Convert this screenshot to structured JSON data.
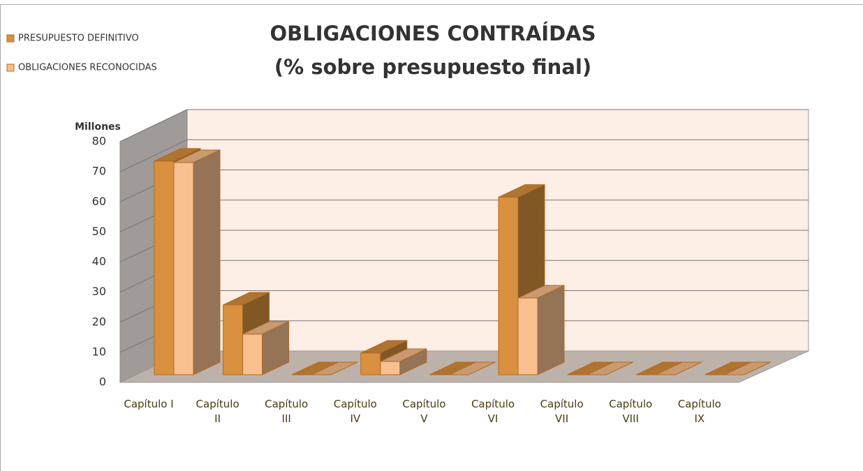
{
  "chart_data": {
    "type": "bar3d",
    "title": "OBLIGACIONES CONTRAÍDAS",
    "subtitle": "(% sobre presupuesto final)",
    "y_label": "Millones",
    "categories": [
      "Capítulo I",
      "Capítulo\nII",
      "Capítulo\nIII",
      "Capítulo\nIV",
      "Capítulo\nV",
      "Capítulo\nVI",
      "Capítulo\nVII",
      "Capítulo\nVIII",
      "Capítulo\nIX"
    ],
    "series": [
      {
        "name": "PRESUPUESTO DEFINITIVO",
        "color": "#d9913f",
        "values": [
          71,
          23.2,
          0,
          7.2,
          0,
          59,
          0,
          0,
          0
        ]
      },
      {
        "name": "OBLIGACIONES RECONOCIDAS",
        "color": "#f9c08f",
        "values": [
          70.5,
          13.5,
          0,
          4.4,
          0,
          25.5,
          0,
          0,
          0
        ]
      }
    ],
    "ylim": [
      0,
      80
    ],
    "yticks": [
      0,
      10,
      20,
      30,
      40,
      50,
      60,
      70,
      80
    ],
    "grid": true,
    "legend": "top-left"
  }
}
